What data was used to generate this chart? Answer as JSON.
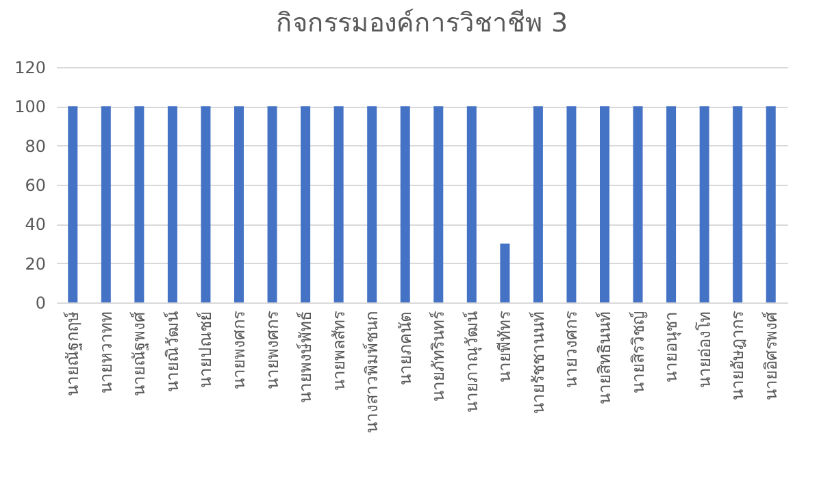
{
  "chart_data": {
    "type": "bar",
    "title": "กิจกรรมองค์การวิชาชีพ 3",
    "categories": [
      "นายณัฐกฤษ์",
      "นายหวาทท",
      "นายณัฐพงศ์",
      "นายณิวัฒน์",
      "นายปณชย์",
      "นายพงศกร",
      "นายพงศกร",
      "นายพงษ์พัทธ์",
      "นายพลสัทร",
      "นางสาวพิมพ์ชนก",
      "นายภคนัต",
      "นายภัทรินทร์",
      "นายภาณุวัฒน์",
      "นายพีทัทร",
      "นายรัชชานนท์",
      "นายวงศกร",
      "นายสิทธินนท์",
      "นายสิรวิชญ์",
      "นายอนุชา",
      "นายอ่องโท",
      "นายอัษฎากร",
      "นายอิศรพงศ์"
    ],
    "values": [
      100,
      100,
      100,
      100,
      100,
      100,
      100,
      100,
      100,
      100,
      100,
      100,
      100,
      30,
      100,
      100,
      100,
      100,
      100,
      100,
      100,
      100
    ],
    "color": "#4472c4",
    "ylim": [
      0,
      120
    ],
    "yticks": [
      0,
      20,
      40,
      60,
      80,
      100,
      120
    ],
    "grid": "y"
  }
}
